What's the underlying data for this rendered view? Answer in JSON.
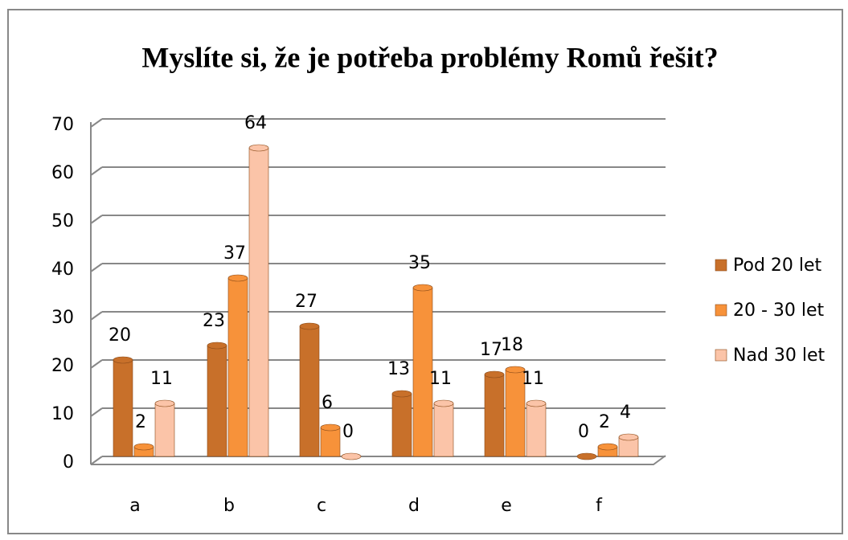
{
  "chart_data": {
    "type": "bar",
    "title": "Myslíte si, že je potřeba problémy Romů řešit?",
    "categories": [
      "a",
      "b",
      "c",
      "d",
      "e",
      "f"
    ],
    "series": [
      {
        "name": "Pod 20 let",
        "color": "#c8702a",
        "values": [
          20,
          23,
          27,
          13,
          17,
          0
        ]
      },
      {
        "name": "20 - 30 let",
        "color": "#f7923a",
        "values": [
          2,
          37,
          6,
          35,
          18,
          2
        ]
      },
      {
        "name": "Nad 30 let",
        "color": "#fbc4a8",
        "values": [
          11,
          64,
          0,
          11,
          11,
          4
        ]
      }
    ],
    "ylim": [
      0,
      70
    ],
    "yticks": [
      0,
      10,
      20,
      30,
      40,
      50,
      60,
      70
    ],
    "grid": true,
    "legend": "right"
  }
}
